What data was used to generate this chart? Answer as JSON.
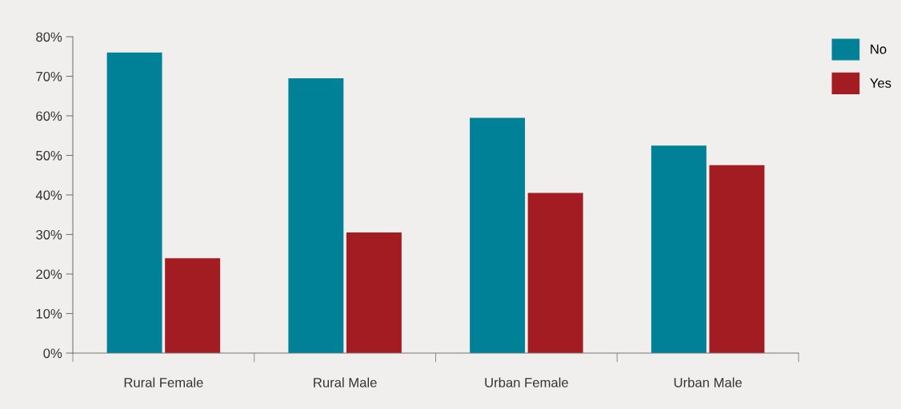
{
  "chart_data": {
    "type": "bar",
    "categories": [
      "Rural Female",
      "Rural Male",
      "Urban Female",
      "Urban Male"
    ],
    "series": [
      {
        "name": "No",
        "color": "#008198",
        "values": [
          76,
          69.5,
          59.5,
          52.5
        ]
      },
      {
        "name": "Yes",
        "color": "#a31c22",
        "values": [
          24,
          30.5,
          40.5,
          47.5
        ]
      }
    ],
    "ylim": [
      0,
      80
    ],
    "yticks": [
      {
        "value": 0,
        "label": "0%"
      },
      {
        "value": 10,
        "label": "10%"
      },
      {
        "value": 20,
        "label": "20%"
      },
      {
        "value": 30,
        "label": "30%"
      },
      {
        "value": 40,
        "label": "40%"
      },
      {
        "value": 50,
        "label": "50%"
      },
      {
        "value": 60,
        "label": "60%"
      },
      {
        "value": 70,
        "label": "70%"
      },
      {
        "value": 80,
        "label": "80%"
      }
    ],
    "grid": false,
    "legend": "top right"
  }
}
